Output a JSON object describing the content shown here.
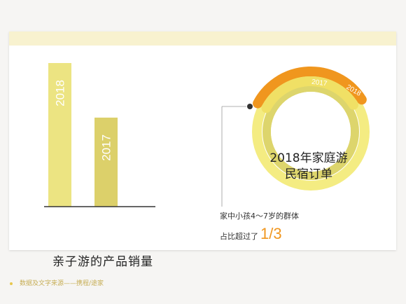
{
  "chart_data": [
    {
      "type": "bar",
      "categories": [
        "2018",
        "2017"
      ],
      "series": [
        {
          "values": [
            100,
            62
          ],
          "colors": [
            "#ece482",
            "#dcd06a"
          ]
        }
      ],
      "title": "亲子游的产品销量",
      "ylim": [
        0,
        100
      ]
    },
    {
      "type": "pie",
      "style": "concentric-rings",
      "categories": [
        "2017",
        "2018"
      ],
      "values": [
        33.3,
        33.3
      ],
      "title": "2018年家庭游民宿订单",
      "colors": {
        "2017": "#f0e065",
        "2018": "#f0961e",
        "track": "#f4ec82",
        "inner": "#ddd56c"
      },
      "annotation": {
        "line1": "家中小孩4～7岁的群体",
        "line2_prefix": "占比超过了",
        "line2_value": "1/3"
      }
    }
  ],
  "footer": {
    "text": "数据及文字来源——携程/途家"
  },
  "colors": {
    "accent": "#f0961e",
    "band": "#f8f2cf",
    "axis": "#333333"
  }
}
